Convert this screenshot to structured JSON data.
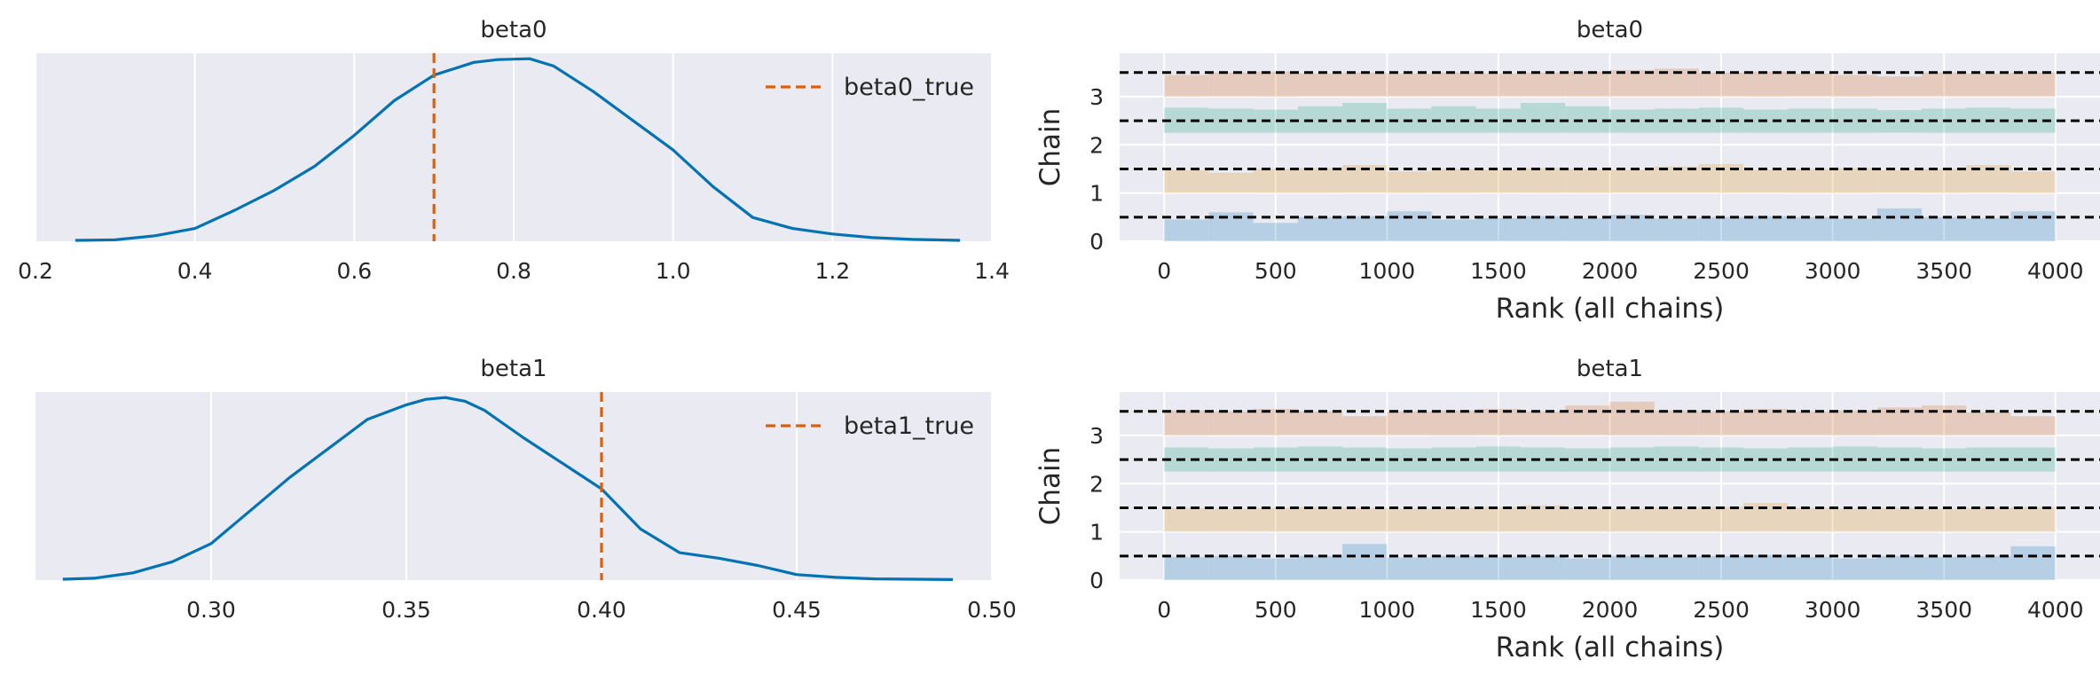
{
  "colors": {
    "background": "#EAEAF2",
    "grid": "#FFFFFF",
    "kde_line": "#0173B2",
    "true_line": "#DE5F0A",
    "chain_hlines": "#000000",
    "chains": [
      "#0173B2",
      "#DE8F05",
      "#029E73",
      "#D55E00"
    ]
  },
  "chart_data": [
    {
      "id": "kde_beta0",
      "type": "line",
      "title": "beta0",
      "xlim": [
        0.2,
        1.4
      ],
      "xticks": [
        0.2,
        0.4,
        0.6,
        0.8,
        1.0,
        1.2,
        1.4
      ],
      "xtick_labels": [
        "0.2",
        "0.4",
        "0.6",
        "0.8",
        "1.0",
        "1.2",
        "1.4"
      ],
      "x": [
        0.25,
        0.3,
        0.35,
        0.4,
        0.45,
        0.5,
        0.55,
        0.6,
        0.65,
        0.7,
        0.75,
        0.78,
        0.82,
        0.85,
        0.9,
        0.95,
        1.0,
        1.05,
        1.1,
        1.15,
        1.2,
        1.25,
        1.3,
        1.36
      ],
      "y": [
        0.005,
        0.008,
        0.03,
        0.07,
        0.17,
        0.28,
        0.41,
        0.58,
        0.77,
        0.91,
        0.98,
        0.995,
        1.0,
        0.96,
        0.82,
        0.66,
        0.5,
        0.3,
        0.13,
        0.07,
        0.04,
        0.02,
        0.01,
        0.005
      ],
      "ylim": [
        0,
        1.03
      ],
      "reference_line": {
        "x": 0.7,
        "label": "beta0_true"
      },
      "legend": "top-right",
      "grid": true
    },
    {
      "id": "kde_beta1",
      "type": "line",
      "title": "beta1",
      "xlim": [
        0.255,
        0.5
      ],
      "xticks": [
        0.3,
        0.35,
        0.4,
        0.45,
        0.5
      ],
      "xtick_labels": [
        "0.30",
        "0.35",
        "0.40",
        "0.45",
        "0.50"
      ],
      "x": [
        0.262,
        0.27,
        0.28,
        0.29,
        0.3,
        0.31,
        0.32,
        0.33,
        0.34,
        0.35,
        0.355,
        0.36,
        0.365,
        0.37,
        0.38,
        0.39,
        0.4,
        0.41,
        0.42,
        0.43,
        0.44,
        0.45,
        0.46,
        0.47,
        0.49
      ],
      "y": [
        0.005,
        0.01,
        0.04,
        0.1,
        0.2,
        0.38,
        0.56,
        0.72,
        0.88,
        0.96,
        0.99,
        1.0,
        0.98,
        0.93,
        0.78,
        0.64,
        0.5,
        0.28,
        0.15,
        0.12,
        0.08,
        0.03,
        0.015,
        0.007,
        0.003
      ],
      "ylim": [
        0,
        1.03
      ],
      "reference_line": {
        "x": 0.4,
        "label": "beta1_true"
      },
      "legend": "top-right",
      "grid": true
    },
    {
      "id": "rank_beta0",
      "type": "bar",
      "title": "beta0",
      "xlabel": "Rank (all chains)",
      "ylabel": "Chain",
      "xlim": [
        -200,
        4200
      ],
      "xticks": [
        0,
        500,
        1000,
        1500,
        2000,
        2500,
        3000,
        3500,
        4000
      ],
      "xtick_labels": [
        "0",
        "500",
        "1000",
        "1500",
        "2000",
        "2500",
        "3000",
        "3500",
        "4000"
      ],
      "yticks": [
        0,
        1,
        2,
        3
      ],
      "ytick_labels": [
        "0",
        "1",
        "2",
        "3"
      ],
      "ylim": [
        0,
        3.9
      ],
      "bin_edges": [
        0,
        200,
        400,
        600,
        800,
        1000,
        1200,
        1400,
        1600,
        1800,
        2000,
        2200,
        2400,
        2600,
        2800,
        3000,
        3200,
        3400,
        3600,
        3800,
        4000
      ],
      "chain_baselines": [
        0,
        1,
        2.25,
        3
      ],
      "reference_lines": [
        0.5,
        1.5,
        2.5,
        3.5
      ],
      "series": [
        {
          "values": [
            0.45,
            0.6,
            0.38,
            0.5,
            0.52,
            0.62,
            0.45,
            0.48,
            0.52,
            0.48,
            0.55,
            0.47,
            0.5,
            0.52,
            0.5,
            0.47,
            0.68,
            0.5,
            0.48,
            0.62
          ]
        },
        {
          "values": [
            0.47,
            0.42,
            0.5,
            0.52,
            0.58,
            0.45,
            0.5,
            0.48,
            0.52,
            0.5,
            0.48,
            0.55,
            0.6,
            0.48,
            0.5,
            0.52,
            0.47,
            0.5,
            0.58,
            0.45
          ]
        },
        {
          "values": [
            0.52,
            0.5,
            0.48,
            0.55,
            0.62,
            0.5,
            0.55,
            0.5,
            0.62,
            0.55,
            0.48,
            0.5,
            0.52,
            0.48,
            0.5,
            0.5,
            0.47,
            0.5,
            0.52,
            0.5
          ]
        },
        {
          "values": [
            0.45,
            0.5,
            0.52,
            0.48,
            0.5,
            0.48,
            0.5,
            0.48,
            0.5,
            0.52,
            0.55,
            0.58,
            0.5,
            0.52,
            0.48,
            0.45,
            0.42,
            0.5,
            0.48,
            0.5
          ]
        }
      ],
      "grid": true
    },
    {
      "id": "rank_beta1",
      "type": "bar",
      "title": "beta1",
      "xlabel": "Rank (all chains)",
      "ylabel": "Chain",
      "xlim": [
        -200,
        4200
      ],
      "xticks": [
        0,
        500,
        1000,
        1500,
        2000,
        2500,
        3000,
        3500,
        4000
      ],
      "xtick_labels": [
        "0",
        "500",
        "1000",
        "1500",
        "2000",
        "2500",
        "3000",
        "3500",
        "4000"
      ],
      "yticks": [
        0,
        1,
        2,
        3
      ],
      "ytick_labels": [
        "0",
        "1",
        "2",
        "3"
      ],
      "ylim": [
        0,
        3.9
      ],
      "bin_edges": [
        0,
        200,
        400,
        600,
        800,
        1000,
        1200,
        1400,
        1600,
        1800,
        2000,
        2200,
        2400,
        2600,
        2800,
        3000,
        3200,
        3400,
        3600,
        3800,
        4000
      ],
      "chain_baselines": [
        0,
        1,
        2.25,
        3
      ],
      "reference_lines": [
        0.5,
        1.5,
        2.5,
        3.5
      ],
      "series": [
        {
          "values": [
            0.48,
            0.5,
            0.45,
            0.5,
            0.75,
            0.47,
            0.5,
            0.48,
            0.5,
            0.45,
            0.5,
            0.48,
            0.5,
            0.52,
            0.48,
            0.45,
            0.5,
            0.48,
            0.5,
            0.7
          ]
        },
        {
          "values": [
            0.5,
            0.48,
            0.5,
            0.52,
            0.5,
            0.48,
            0.5,
            0.52,
            0.55,
            0.5,
            0.48,
            0.5,
            0.52,
            0.6,
            0.5,
            0.48,
            0.5,
            0.48,
            0.5,
            0.52
          ]
        },
        {
          "values": [
            0.5,
            0.48,
            0.5,
            0.52,
            0.5,
            0.48,
            0.5,
            0.52,
            0.5,
            0.48,
            0.5,
            0.52,
            0.5,
            0.48,
            0.5,
            0.52,
            0.5,
            0.48,
            0.5,
            0.5
          ]
        },
        {
          "values": [
            0.52,
            0.5,
            0.55,
            0.5,
            0.4,
            0.5,
            0.52,
            0.55,
            0.5,
            0.62,
            0.7,
            0.52,
            0.5,
            0.55,
            0.5,
            0.52,
            0.58,
            0.62,
            0.48,
            0.4
          ]
        }
      ],
      "grid": true
    }
  ]
}
